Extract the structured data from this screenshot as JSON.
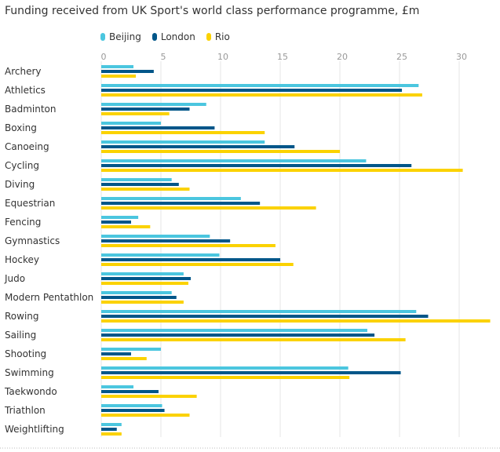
{
  "chart_data": {
    "type": "bar",
    "orientation": "horizontal",
    "title": "Funding received from UK Sport's world class performance programme, £m",
    "xlabel": "",
    "ylabel": "",
    "xlim": [
      0,
      32
    ],
    "ticks": [
      0,
      5,
      10,
      15,
      20,
      25,
      30
    ],
    "grid": true,
    "legend_position": "top-left",
    "categories": [
      "Archery",
      "Athletics",
      "Badminton",
      "Boxing",
      "Canoeing",
      "Cycling",
      "Diving",
      "Equestrian",
      "Fencing",
      "Gymnastics",
      "Hockey",
      "Judo",
      "Modern Pentathlon",
      "Rowing",
      "Sailing",
      "Shooting",
      "Swimming",
      "Taekwondo",
      "Triathlon",
      "Weightlifting"
    ],
    "series": [
      {
        "name": "Beijing",
        "color": "#4bc6df",
        "values": [
          2.7,
          26.6,
          8.8,
          5.0,
          13.7,
          22.2,
          5.9,
          11.7,
          3.1,
          9.1,
          9.9,
          6.9,
          5.9,
          26.4,
          22.3,
          5.0,
          20.7,
          2.7,
          5.1,
          1.7
        ]
      },
      {
        "name": "London",
        "color": "#005689",
        "values": [
          4.4,
          25.2,
          7.4,
          9.5,
          16.2,
          26.0,
          6.5,
          13.3,
          2.5,
          10.8,
          15.0,
          7.5,
          6.3,
          27.4,
          22.9,
          2.5,
          25.1,
          4.8,
          5.3,
          1.3
        ]
      },
      {
        "name": "Rio",
        "color": "#fbd200",
        "values": [
          2.9,
          26.9,
          5.7,
          13.7,
          20.0,
          30.3,
          7.4,
          18.0,
          4.1,
          14.6,
          16.1,
          7.3,
          6.9,
          32.6,
          25.5,
          3.8,
          20.8,
          8.0,
          7.4,
          1.7
        ]
      }
    ]
  }
}
